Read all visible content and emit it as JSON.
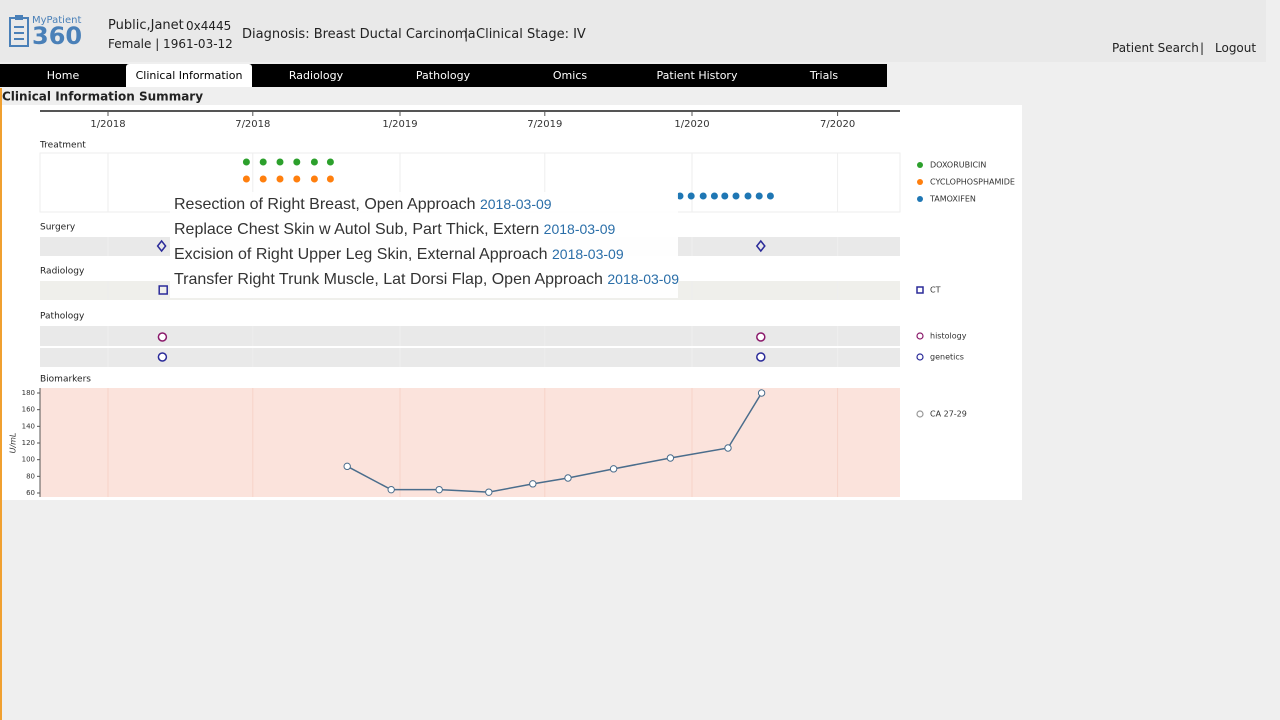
{
  "header": {
    "logo_text": "MyPatient",
    "logo_number": "360",
    "patient_name": "Public,Janet",
    "patient_id": "0x4445",
    "patient_info": "Female | 1961-03-12",
    "diagnosis": "Diagnosis: Breast Ductal Carcinoma",
    "separator": "|",
    "stage": "Clinical Stage: IV",
    "links": [
      "Patient Search",
      "|",
      "Logout"
    ]
  },
  "tabs": [
    "Home",
    "Clinical Information",
    "Radiology",
    "Pathology",
    "Omics",
    "Patient History",
    "Trials"
  ],
  "section_title": "Clinical Information Summary",
  "tooltip": {
    "items": [
      {
        "text": "Resection of Right Breast, Open Approach",
        "date": "2018-03-09"
      },
      {
        "text": "Replace Chest Skin w Autol Sub, Part Thick, Extern",
        "date": "2018-03-09"
      },
      {
        "text": "Excision of Right Upper Leg Skin, External Approach",
        "date": "2018-03-09"
      },
      {
        "text": "Transfer Right Trunk Muscle, Lat Dorsi Flap, Open Approach",
        "date": "2018-03-09"
      }
    ]
  },
  "chart_data": {
    "type": "timeline",
    "xlim": [
      "2017-10-08",
      "2020-09-17"
    ],
    "xticks": [
      {
        "value": "2018-01-01",
        "label": "1/2018"
      },
      {
        "value": "2018-07-01",
        "label": "7/2018"
      },
      {
        "value": "2019-01-01",
        "label": "1/2019"
      },
      {
        "value": "2019-07-01",
        "label": "7/2019"
      },
      {
        "value": "2020-01-01",
        "label": "1/2020"
      },
      {
        "value": "2020-07-01",
        "label": "7/2020"
      }
    ],
    "tracks": [
      {
        "name": "Treatment",
        "series": [
          {
            "name": "DOXORUBICIN",
            "color": "#2ca02c",
            "marker": "dot",
            "x": [
              "2018-06-23",
              "2018-07-14",
              "2018-08-04",
              "2018-08-25",
              "2018-09-16",
              "2018-10-06"
            ]
          },
          {
            "name": "CYCLOPHOSPHAMIDE",
            "color": "#ff7f0e",
            "marker": "dot",
            "x": [
              "2018-06-23",
              "2018-07-14",
              "2018-08-04",
              "2018-08-25",
              "2018-09-16",
              "2018-10-06"
            ]
          },
          {
            "name": "TAMOXIFEN",
            "color": "#1f77b4",
            "marker": "dot",
            "x": [
              "2019-12-17",
              "2019-12-31",
              "2020-01-15",
              "2020-01-29",
              "2020-02-11",
              "2020-02-25",
              "2020-03-11",
              "2020-03-25",
              "2020-04-08"
            ]
          }
        ]
      },
      {
        "name": "Surgery",
        "series": [
          {
            "color": "#2b2b99",
            "marker": "diamond",
            "x": [
              "2018-03-09",
              "2020-03-27"
            ]
          }
        ]
      },
      {
        "name": "Radiology",
        "series": [
          {
            "name": "CT",
            "color": "#2b2b99",
            "marker": "square",
            "x": [
              "2018-03-11"
            ]
          }
        ]
      },
      {
        "name": "Pathology",
        "series": [
          {
            "name": "histology",
            "color": "#8b1a6b",
            "marker": "circle",
            "x": [
              "2018-03-10",
              "2020-03-27"
            ]
          },
          {
            "name": "genetics",
            "color": "#2b2b99",
            "marker": "circle",
            "x": [
              "2018-03-10",
              "2020-03-27"
            ]
          }
        ]
      }
    ],
    "biomarkers": {
      "name": "Biomarkers",
      "y_label": "U/mL",
      "ylim": [
        60,
        180
      ],
      "yticks": [
        60,
        80,
        100,
        120,
        140,
        160,
        180
      ],
      "series": [
        {
          "name": "CA 27-29",
          "color": "#4a6d8c",
          "x": [
            "2018-10-27",
            "2018-12-21",
            "2019-02-19",
            "2019-04-22",
            "2019-06-16",
            "2019-07-30",
            "2019-09-25",
            "2019-12-05",
            "2020-02-15",
            "2020-03-28"
          ],
          "values": [
            92,
            64,
            64,
            61,
            71,
            78,
            89,
            102,
            114,
            180
          ]
        }
      ]
    }
  }
}
